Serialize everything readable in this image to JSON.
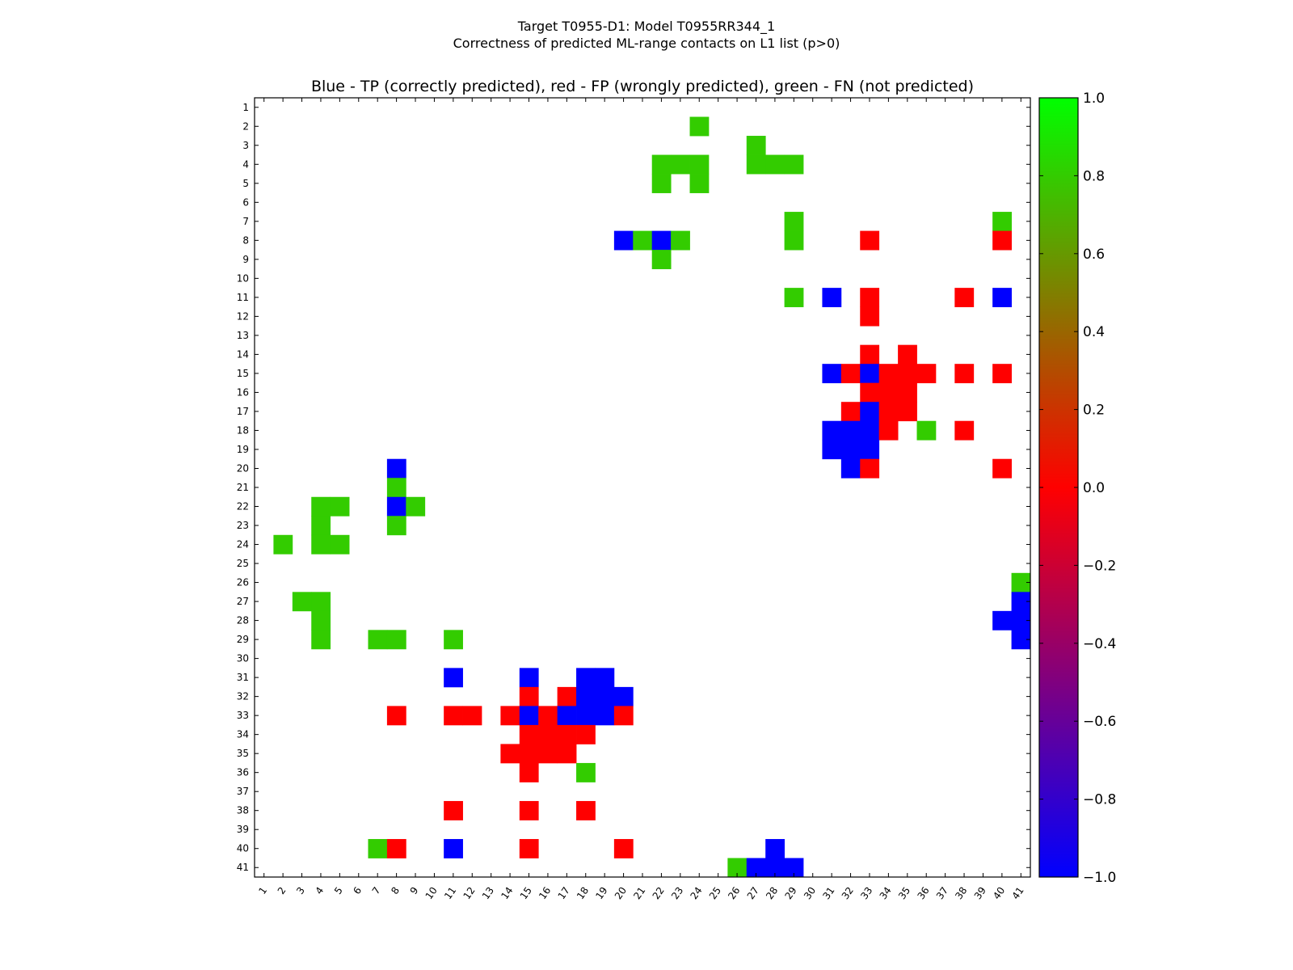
{
  "chart_data": {
    "type": "heatmap",
    "suptitle_line1": "Target T0955-D1: Model T0955RR344_1",
    "suptitle_line2": "Correctness of predicted ML-range contacts on L1 list (p>0)",
    "title": "Blue - TP (correctly predicted), red - FP (wrongly predicted), green - FN (not predicted)",
    "n": 41,
    "x_ticks": [
      "1",
      "2",
      "3",
      "4",
      "5",
      "6",
      "7",
      "8",
      "9",
      "10",
      "11",
      "12",
      "13",
      "14",
      "15",
      "16",
      "17",
      "18",
      "19",
      "20",
      "21",
      "22",
      "23",
      "24",
      "25",
      "26",
      "27",
      "28",
      "29",
      "30",
      "31",
      "32",
      "33",
      "34",
      "35",
      "36",
      "37",
      "38",
      "39",
      "40",
      "41"
    ],
    "y_ticks": [
      "1",
      "2",
      "3",
      "4",
      "5",
      "6",
      "7",
      "8",
      "9",
      "10",
      "11",
      "12",
      "13",
      "14",
      "15",
      "16",
      "17",
      "18",
      "19",
      "20",
      "21",
      "22",
      "23",
      "24",
      "25",
      "26",
      "27",
      "28",
      "29",
      "30",
      "31",
      "32",
      "33",
      "34",
      "35",
      "36",
      "37",
      "38",
      "39",
      "40",
      "41"
    ],
    "colorbar": {
      "min": -1.0,
      "max": 1.0,
      "ticks": [
        "1.0",
        "0.8",
        "0.6",
        "0.4",
        "0.2",
        "0.0",
        "−0.2",
        "−0.4",
        "−0.6",
        "−0.8",
        "−1.0"
      ],
      "tick_values": [
        1.0,
        0.8,
        0.6,
        0.4,
        0.2,
        0.0,
        -0.2,
        -0.4,
        -0.6,
        -0.8,
        -1.0
      ],
      "colormap": "brg",
      "colors": {
        "tp": "#0000ff",
        "fp": "#ff0000",
        "fn": "#33cc00"
      }
    },
    "legend": {
      "tp": "Blue - TP (correctly predicted)",
      "fp": "red - FP (wrongly predicted)",
      "fn": "green - FN (not predicted)"
    },
    "cells": [
      {
        "row": 2,
        "col": 24,
        "value": 0.8
      },
      {
        "row": 3,
        "col": 27,
        "value": 0.8
      },
      {
        "row": 4,
        "col": 22,
        "value": 0.8
      },
      {
        "row": 4,
        "col": 23,
        "value": 0.8
      },
      {
        "row": 4,
        "col": 24,
        "value": 0.8
      },
      {
        "row": 4,
        "col": 27,
        "value": 0.8
      },
      {
        "row": 4,
        "col": 28,
        "value": 0.8
      },
      {
        "row": 4,
        "col": 29,
        "value": 0.8
      },
      {
        "row": 5,
        "col": 22,
        "value": 0.8
      },
      {
        "row": 5,
        "col": 24,
        "value": 0.8
      },
      {
        "row": 7,
        "col": 29,
        "value": 0.8
      },
      {
        "row": 7,
        "col": 40,
        "value": 0.8
      },
      {
        "row": 8,
        "col": 20,
        "value": -1.0
      },
      {
        "row": 8,
        "col": 21,
        "value": 0.8
      },
      {
        "row": 8,
        "col": 22,
        "value": -1.0
      },
      {
        "row": 8,
        "col": 23,
        "value": 0.8
      },
      {
        "row": 8,
        "col": 29,
        "value": 0.8
      },
      {
        "row": 8,
        "col": 33,
        "value": 0.0
      },
      {
        "row": 8,
        "col": 40,
        "value": 0.0
      },
      {
        "row": 9,
        "col": 22,
        "value": 0.8
      },
      {
        "row": 11,
        "col": 29,
        "value": 0.8
      },
      {
        "row": 11,
        "col": 31,
        "value": -1.0
      },
      {
        "row": 11,
        "col": 33,
        "value": 0.0
      },
      {
        "row": 11,
        "col": 38,
        "value": 0.0
      },
      {
        "row": 11,
        "col": 40,
        "value": -1.0
      },
      {
        "row": 12,
        "col": 33,
        "value": 0.0
      },
      {
        "row": 14,
        "col": 33,
        "value": 0.0
      },
      {
        "row": 14,
        "col": 35,
        "value": 0.0
      },
      {
        "row": 15,
        "col": 31,
        "value": -1.0
      },
      {
        "row": 15,
        "col": 32,
        "value": 0.0
      },
      {
        "row": 15,
        "col": 33,
        "value": -1.0
      },
      {
        "row": 15,
        "col": 34,
        "value": 0.0
      },
      {
        "row": 15,
        "col": 35,
        "value": 0.0
      },
      {
        "row": 15,
        "col": 36,
        "value": 0.0
      },
      {
        "row": 15,
        "col": 38,
        "value": 0.0
      },
      {
        "row": 15,
        "col": 40,
        "value": 0.0
      },
      {
        "row": 16,
        "col": 33,
        "value": 0.0
      },
      {
        "row": 16,
        "col": 34,
        "value": 0.0
      },
      {
        "row": 16,
        "col": 35,
        "value": 0.0
      },
      {
        "row": 17,
        "col": 32,
        "value": 0.0
      },
      {
        "row": 17,
        "col": 33,
        "value": -1.0
      },
      {
        "row": 17,
        "col": 34,
        "value": 0.0
      },
      {
        "row": 17,
        "col": 35,
        "value": 0.0
      },
      {
        "row": 18,
        "col": 31,
        "value": -1.0
      },
      {
        "row": 18,
        "col": 32,
        "value": -1.0
      },
      {
        "row": 18,
        "col": 33,
        "value": -1.0
      },
      {
        "row": 18,
        "col": 34,
        "value": 0.0
      },
      {
        "row": 18,
        "col": 36,
        "value": 0.8
      },
      {
        "row": 18,
        "col": 38,
        "value": 0.0
      },
      {
        "row": 19,
        "col": 31,
        "value": -1.0
      },
      {
        "row": 19,
        "col": 32,
        "value": -1.0
      },
      {
        "row": 19,
        "col": 33,
        "value": -1.0
      },
      {
        "row": 20,
        "col": 8,
        "value": -1.0
      },
      {
        "row": 20,
        "col": 32,
        "value": -1.0
      },
      {
        "row": 20,
        "col": 33,
        "value": 0.0
      },
      {
        "row": 20,
        "col": 40,
        "value": 0.0
      },
      {
        "row": 21,
        "col": 8,
        "value": 0.8
      },
      {
        "row": 22,
        "col": 4,
        "value": 0.8
      },
      {
        "row": 22,
        "col": 5,
        "value": 0.8
      },
      {
        "row": 22,
        "col": 8,
        "value": -1.0
      },
      {
        "row": 22,
        "col": 9,
        "value": 0.8
      },
      {
        "row": 23,
        "col": 4,
        "value": 0.8
      },
      {
        "row": 23,
        "col": 8,
        "value": 0.8
      },
      {
        "row": 24,
        "col": 2,
        "value": 0.8
      },
      {
        "row": 24,
        "col": 4,
        "value": 0.8
      },
      {
        "row": 24,
        "col": 5,
        "value": 0.8
      },
      {
        "row": 26,
        "col": 41,
        "value": 0.8
      },
      {
        "row": 27,
        "col": 3,
        "value": 0.8
      },
      {
        "row": 27,
        "col": 4,
        "value": 0.8
      },
      {
        "row": 27,
        "col": 41,
        "value": -1.0
      },
      {
        "row": 28,
        "col": 4,
        "value": 0.8
      },
      {
        "row": 28,
        "col": 40,
        "value": -1.0
      },
      {
        "row": 28,
        "col": 41,
        "value": -1.0
      },
      {
        "row": 29,
        "col": 4,
        "value": 0.8
      },
      {
        "row": 29,
        "col": 7,
        "value": 0.8
      },
      {
        "row": 29,
        "col": 8,
        "value": 0.8
      },
      {
        "row": 29,
        "col": 11,
        "value": 0.8
      },
      {
        "row": 29,
        "col": 41,
        "value": -1.0
      },
      {
        "row": 31,
        "col": 11,
        "value": -1.0
      },
      {
        "row": 31,
        "col": 15,
        "value": -1.0
      },
      {
        "row": 31,
        "col": 18,
        "value": -1.0
      },
      {
        "row": 31,
        "col": 19,
        "value": -1.0
      },
      {
        "row": 32,
        "col": 15,
        "value": 0.0
      },
      {
        "row": 32,
        "col": 17,
        "value": 0.0
      },
      {
        "row": 32,
        "col": 18,
        "value": -1.0
      },
      {
        "row": 32,
        "col": 19,
        "value": -1.0
      },
      {
        "row": 32,
        "col": 20,
        "value": -1.0
      },
      {
        "row": 33,
        "col": 8,
        "value": 0.0
      },
      {
        "row": 33,
        "col": 11,
        "value": 0.0
      },
      {
        "row": 33,
        "col": 12,
        "value": 0.0
      },
      {
        "row": 33,
        "col": 14,
        "value": 0.0
      },
      {
        "row": 33,
        "col": 15,
        "value": -1.0
      },
      {
        "row": 33,
        "col": 16,
        "value": 0.0
      },
      {
        "row": 33,
        "col": 17,
        "value": -1.0
      },
      {
        "row": 33,
        "col": 18,
        "value": -1.0
      },
      {
        "row": 33,
        "col": 19,
        "value": -1.0
      },
      {
        "row": 33,
        "col": 20,
        "value": 0.0
      },
      {
        "row": 34,
        "col": 15,
        "value": 0.0
      },
      {
        "row": 34,
        "col": 16,
        "value": 0.0
      },
      {
        "row": 34,
        "col": 17,
        "value": 0.0
      },
      {
        "row": 34,
        "col": 18,
        "value": 0.0
      },
      {
        "row": 35,
        "col": 14,
        "value": 0.0
      },
      {
        "row": 35,
        "col": 15,
        "value": 0.0
      },
      {
        "row": 35,
        "col": 16,
        "value": 0.0
      },
      {
        "row": 35,
        "col": 17,
        "value": 0.0
      },
      {
        "row": 36,
        "col": 15,
        "value": 0.0
      },
      {
        "row": 36,
        "col": 18,
        "value": 0.8
      },
      {
        "row": 38,
        "col": 11,
        "value": 0.0
      },
      {
        "row": 38,
        "col": 15,
        "value": 0.0
      },
      {
        "row": 38,
        "col": 18,
        "value": 0.0
      },
      {
        "row": 40,
        "col": 7,
        "value": 0.8
      },
      {
        "row": 40,
        "col": 8,
        "value": 0.0
      },
      {
        "row": 40,
        "col": 11,
        "value": -1.0
      },
      {
        "row": 40,
        "col": 15,
        "value": 0.0
      },
      {
        "row": 40,
        "col": 20,
        "value": 0.0
      },
      {
        "row": 40,
        "col": 28,
        "value": -1.0
      },
      {
        "row": 41,
        "col": 26,
        "value": 0.8
      },
      {
        "row": 41,
        "col": 27,
        "value": -1.0
      },
      {
        "row": 41,
        "col": 28,
        "value": -1.0
      },
      {
        "row": 41,
        "col": 29,
        "value": -1.0
      }
    ]
  }
}
